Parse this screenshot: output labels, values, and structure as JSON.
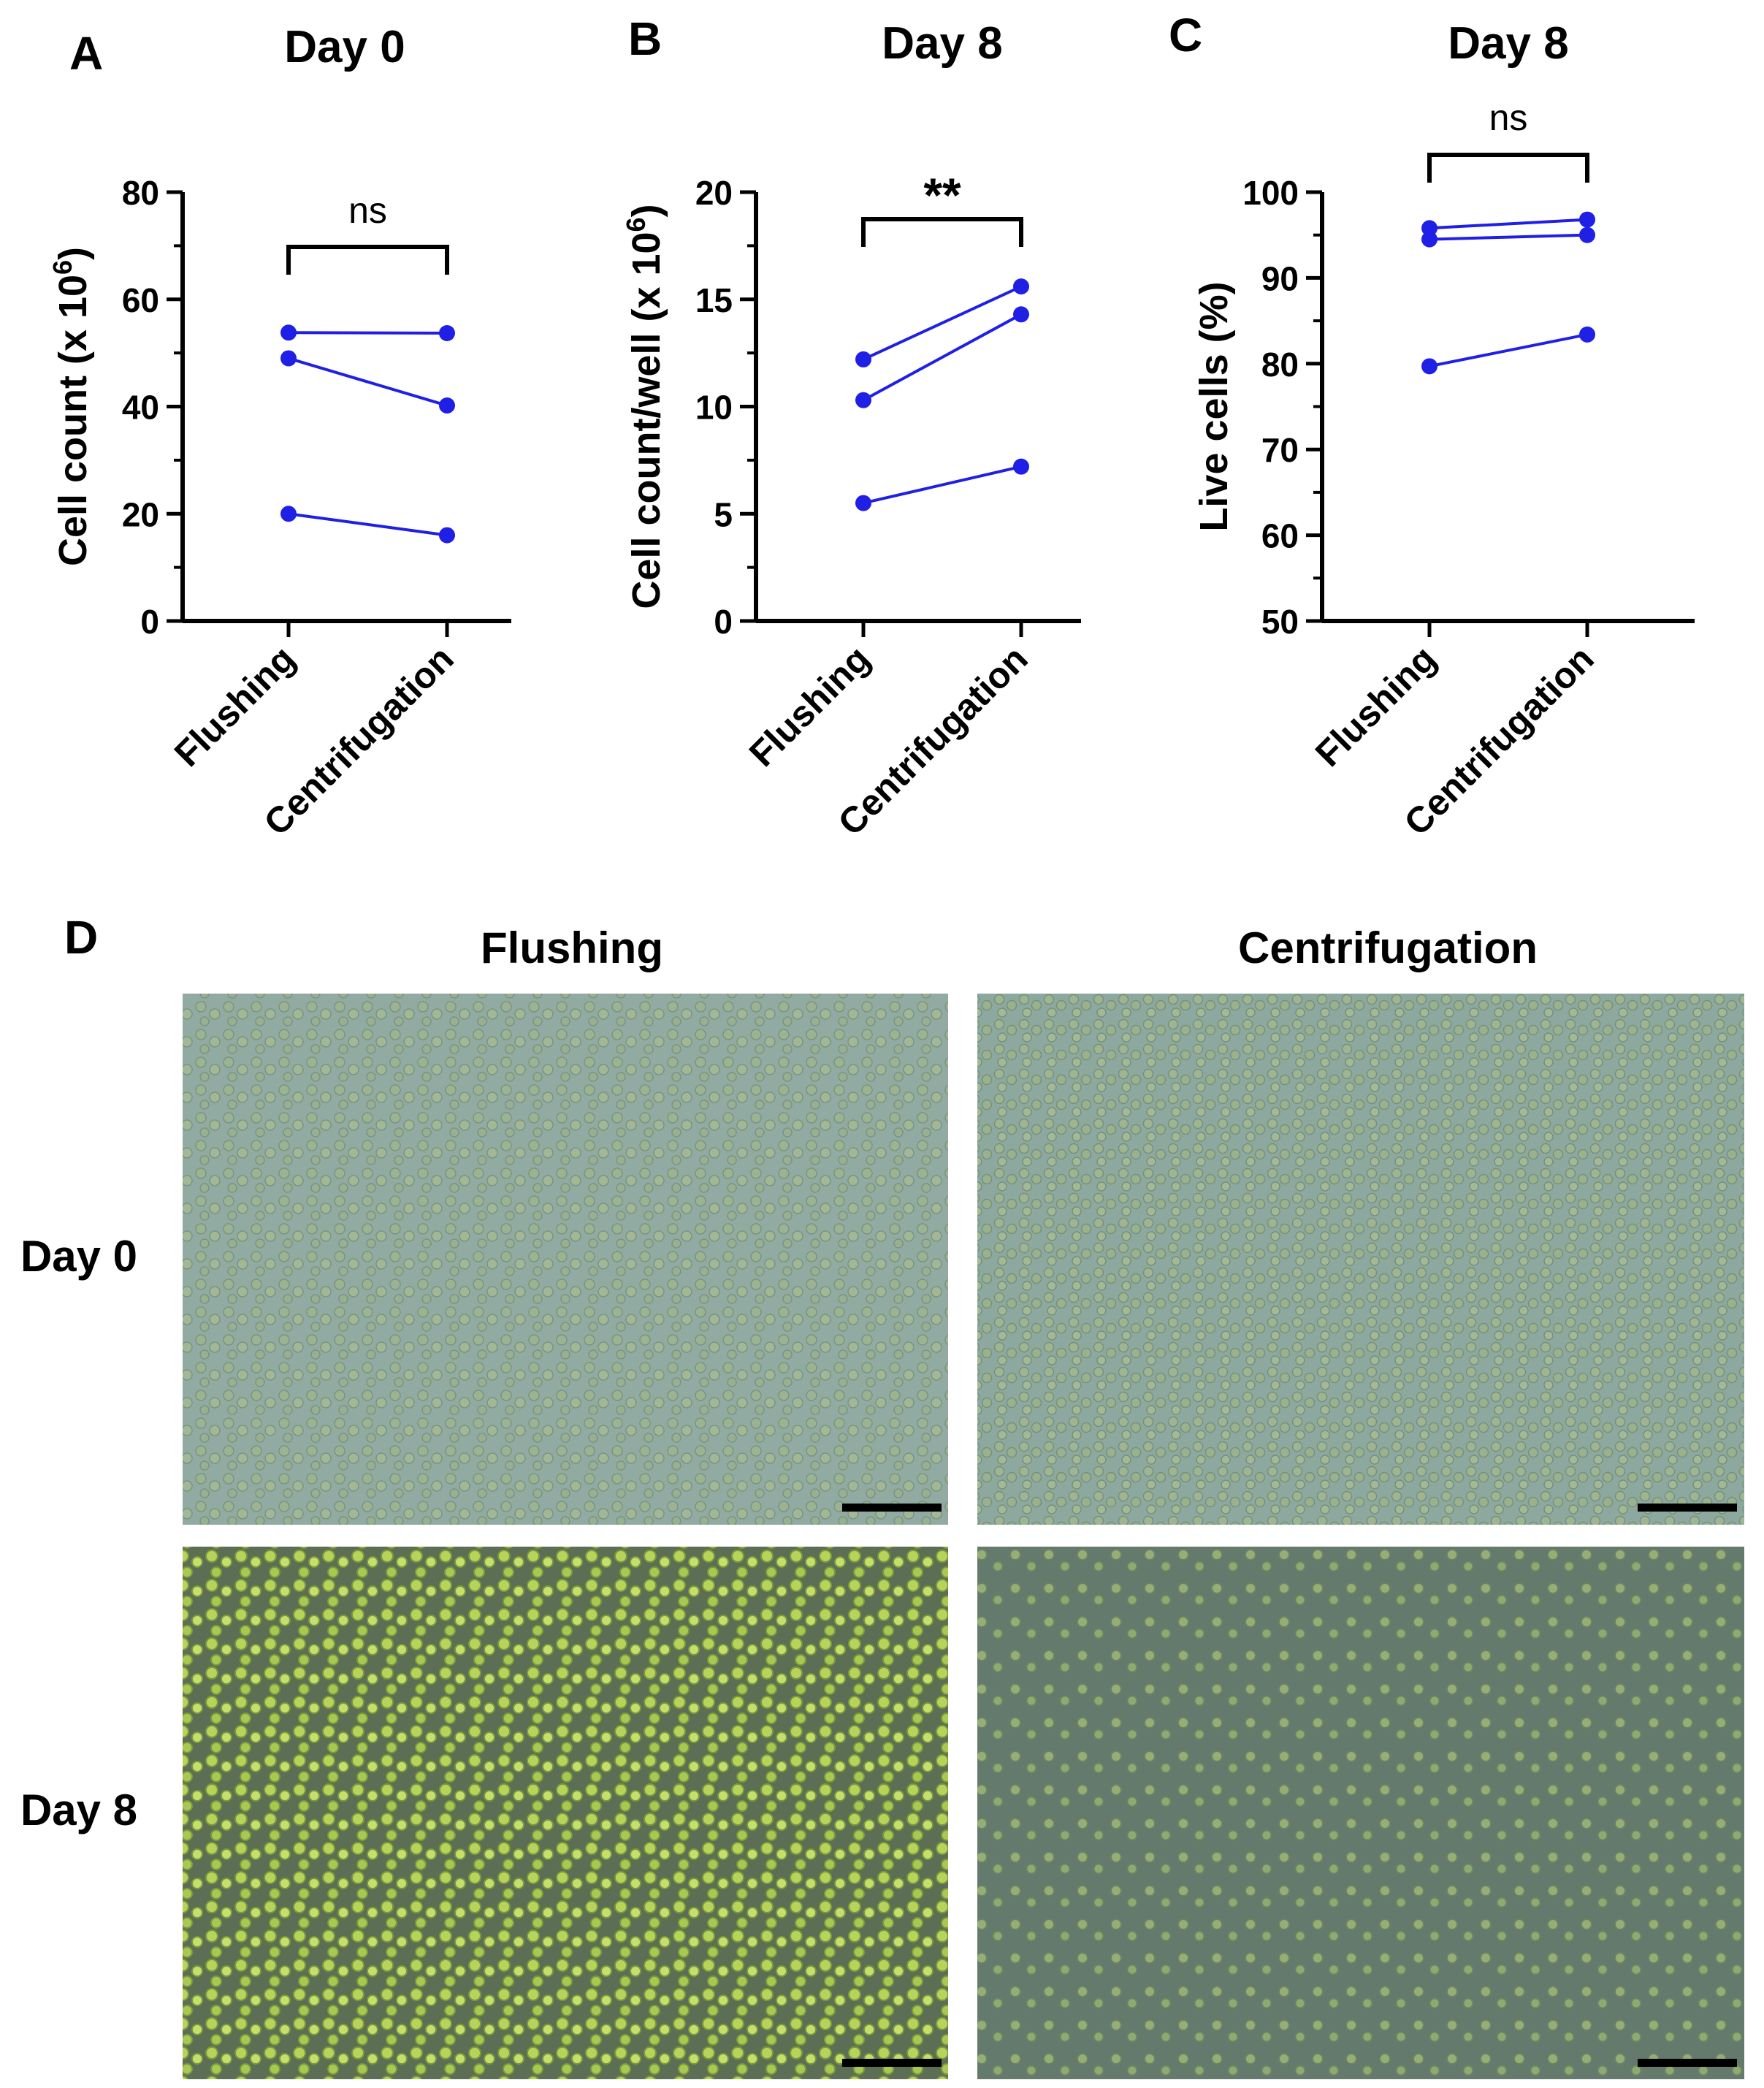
{
  "panel_letters": [
    "A",
    "B",
    "C",
    "D"
  ],
  "chart_data": [
    {
      "type": "line",
      "panel": "A",
      "title": "Day 0",
      "xlabel": "",
      "ylabel": "Cell count (x 10",
      "ylabel_sup": "6",
      "ylabel_tail": ")",
      "categories": [
        "Flushing",
        "Centrifugation"
      ],
      "ylim": [
        0,
        80
      ],
      "yticks": [
        "0",
        "20",
        "40",
        "60",
        "80"
      ],
      "series": [
        {
          "values": [
            53.8,
            53.7
          ]
        },
        {
          "values": [
            49.0,
            40.2
          ]
        },
        {
          "values": [
            20.0,
            16.0
          ]
        }
      ],
      "significance": "ns",
      "marker_color": "#1f1fe6"
    },
    {
      "type": "line",
      "panel": "B",
      "title": "Day 8",
      "xlabel": "",
      "ylabel": "Cell count/well (x 10",
      "ylabel_sup": "6",
      "ylabel_tail": ")",
      "categories": [
        "Flushing",
        "Centrifugation"
      ],
      "ylim": [
        0,
        20
      ],
      "yticks": [
        "0",
        "5",
        "10",
        "15",
        "20"
      ],
      "series": [
        {
          "values": [
            12.2,
            15.6
          ]
        },
        {
          "values": [
            10.3,
            14.3
          ]
        },
        {
          "values": [
            5.5,
            7.2
          ]
        }
      ],
      "significance": "**",
      "marker_color": "#1f1fe6"
    },
    {
      "type": "line",
      "panel": "C",
      "title": "Day 8",
      "xlabel": "",
      "ylabel": "Live cells (%)",
      "ylabel_sup": "",
      "ylabel_tail": "",
      "categories": [
        "Flushing",
        "Centrifugation"
      ],
      "ylim": [
        50,
        100
      ],
      "yticks": [
        "50",
        "60",
        "70",
        "80",
        "90",
        "100"
      ],
      "series": [
        {
          "values": [
            95.8,
            96.8
          ]
        },
        {
          "values": [
            94.5,
            95.0
          ]
        },
        {
          "values": [
            79.7,
            83.4
          ]
        }
      ],
      "significance": "ns",
      "marker_color": "#1f1fe6"
    }
  ],
  "micrographs": {
    "columns": [
      "Flushing",
      "Centrifugation"
    ],
    "rows": [
      "Day 0",
      "Day 8"
    ]
  }
}
